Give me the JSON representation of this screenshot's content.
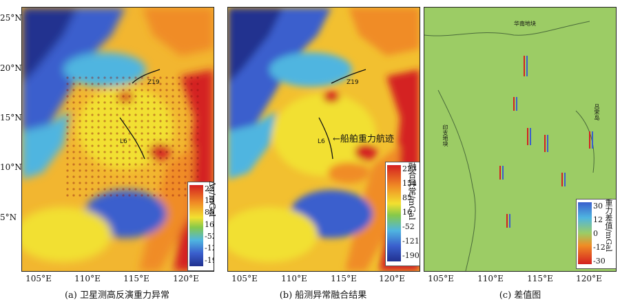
{
  "y_axis": [
    "25°N",
    "20°N",
    "15°N",
    "10°N",
    "5°N"
  ],
  "panels": [
    {
      "id": "a",
      "caption": "(a) 卫星测高反演重力异常",
      "x_ticks": [
        "105°E",
        "110°E",
        "115°E",
        "120°E"
      ],
      "legend": {
        "ticks": [
          "223",
          "154",
          "85",
          "16",
          "-52",
          "-121",
          "-190"
        ],
        "unit": "Δg/mGal"
      },
      "labels": {
        "z19": "Z19",
        "l6": "L6"
      }
    },
    {
      "id": "b",
      "caption": "(b) 船测异常融合结果",
      "x_ticks": [
        "105°E",
        "110°E",
        "115°E",
        "120°E"
      ],
      "legend": {
        "ticks": [
          "223",
          "154",
          "85",
          "16",
          "-52",
          "-121",
          "-190"
        ],
        "unit": "融合异常/mGal"
      },
      "labels": {
        "z19": "Z19",
        "l6": "L6",
        "arrow": "←船舶重力航迹"
      }
    },
    {
      "id": "c",
      "caption": "(c) 差值图",
      "x_ticks": [
        "105°E",
        "110°E",
        "115°E",
        "120°E"
      ],
      "legend": {
        "ticks": [
          "30",
          "12",
          "0",
          "-12",
          "-30"
        ],
        "unit": "重力差值/mGal"
      },
      "labels": {
        "top": "华南地块",
        "left": "印支地块",
        "right": "吕宋岛"
      }
    }
  ],
  "colors": {
    "high": "#d42020",
    "orange": "#f08c25",
    "yellow": "#f2e030",
    "green": "#86c94a",
    "cyan": "#4fb5e0",
    "blue": "#3a5fcd",
    "navy": "#21318f",
    "land_c": "#9ccc65"
  }
}
